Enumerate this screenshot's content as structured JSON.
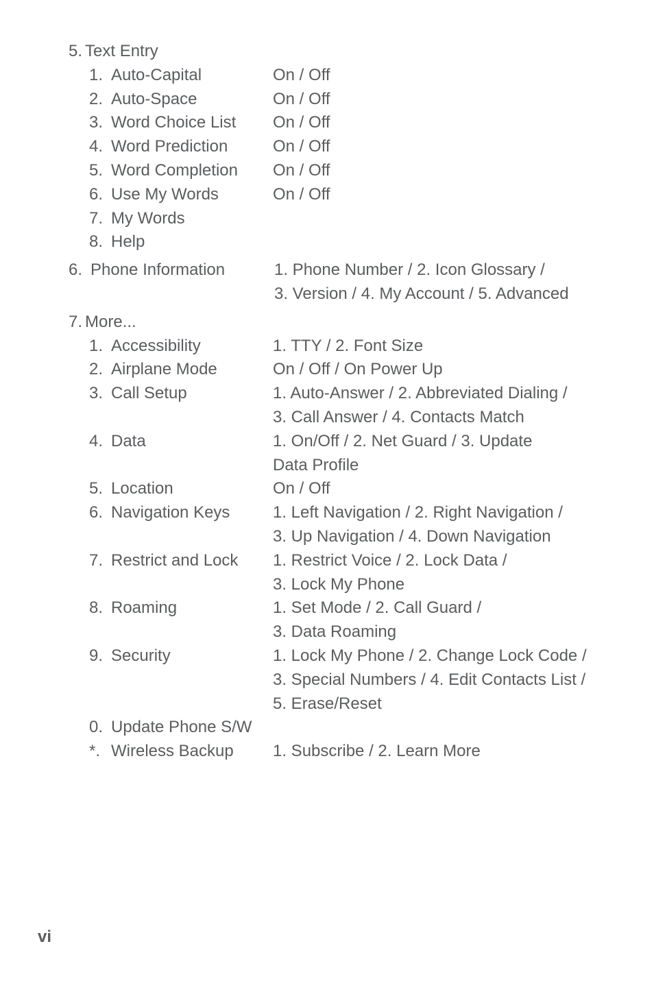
{
  "text_color": "#5a5c5e",
  "background_color": "#ffffff",
  "font_size_pt": 18,
  "page_number": "vi",
  "section5": {
    "num": "5.",
    "title": "Text Entry",
    "items": [
      {
        "num": "1.",
        "label": "Auto-Capital",
        "value": "On / Off"
      },
      {
        "num": "2.",
        "label": "Auto-Space",
        "value": "On / Off"
      },
      {
        "num": "3.",
        "label": "Word Choice List",
        "value": "On / Off"
      },
      {
        "num": "4.",
        "label": "Word Prediction",
        "value": "On / Off"
      },
      {
        "num": "5.",
        "label": "Word Completion",
        "value": "On / Off"
      },
      {
        "num": "6.",
        "label": "Use My Words",
        "value": "On / Off"
      },
      {
        "num": "7.",
        "label": "My Words",
        "value": ""
      },
      {
        "num": "8.",
        "label": "Help",
        "value": ""
      }
    ]
  },
  "section6": {
    "num": "6.",
    "label": "Phone Information",
    "value_line1": "1. Phone Number / 2. Icon Glossary /",
    "value_line2": "3. Version / 4. My Account / 5. Advanced"
  },
  "section7": {
    "num": "7.",
    "title": "More...",
    "items": [
      {
        "num": "1.",
        "label": "Accessibility",
        "lines": [
          "1. TTY / 2. Font Size"
        ]
      },
      {
        "num": "2.",
        "label": "Airplane Mode",
        "lines": [
          "On / Off / On Power Up"
        ]
      },
      {
        "num": "3.",
        "label": "Call Setup",
        "lines": [
          "1. Auto-Answer / 2. Abbreviated Dialing /",
          "3. Call Answer / 4. Contacts Match"
        ]
      },
      {
        "num": "4.",
        "label": "Data",
        "lines": [
          "1. On/Off / 2. Net Guard / 3. Update",
          "Data Profile"
        ]
      },
      {
        "num": "5.",
        "label": "Location",
        "lines": [
          "On / Off"
        ]
      },
      {
        "num": "6.",
        "label": "Navigation Keys",
        "lines": [
          "1. Left Navigation / 2. Right Navigation /",
          "3. Up Navigation / 4. Down Navigation"
        ]
      },
      {
        "num": "7.",
        "label": "Restrict and Lock",
        "lines": [
          "1. Restrict Voice / 2. Lock Data /",
          "3. Lock My Phone"
        ]
      },
      {
        "num": "8.",
        "label": "Roaming",
        "lines": [
          "1. Set Mode / 2. Call Guard /",
          "3. Data Roaming"
        ]
      },
      {
        "num": "9.",
        "label": "Security",
        "lines": [
          "1. Lock My Phone / 2. Change Lock Code /",
          "3. Special Numbers / 4. Edit Contacts List /",
          "5. Erase/Reset"
        ]
      },
      {
        "num": "0.",
        "label": "Update Phone S/W",
        "lines": []
      },
      {
        "num": "*.",
        "label": "Wireless Backup",
        "lines": [
          "1. Subscribe / 2. Learn More"
        ]
      }
    ]
  }
}
